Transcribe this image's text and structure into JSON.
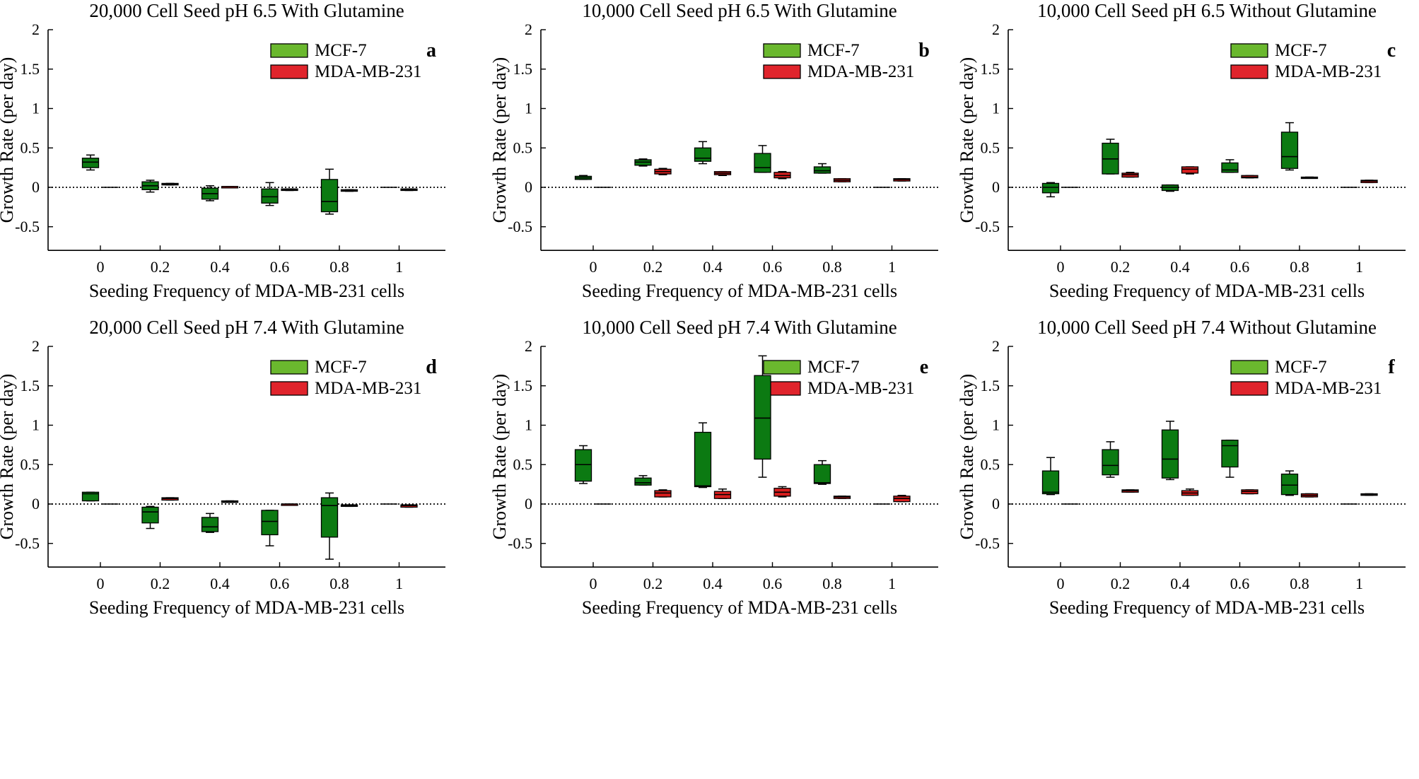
{
  "figure": {
    "colors": {
      "mcf7_fill": "#0c7a12",
      "mcf7_legend": "#6ab82e",
      "mda_fill": "#d81e1e",
      "mda_legend": "#e0242c",
      "axis": "#000000"
    },
    "legend": {
      "mcf7": "MCF-7",
      "mda": "MDA-MB-231"
    },
    "ylabel": "Growth Rate (per day)",
    "xlabel": "Seeding Frequency of MDA-MB-231 cells",
    "yticks": [
      "2",
      "1.5",
      "1",
      "0.5",
      "0",
      "-0.5"
    ],
    "xticks": [
      "0",
      "0.2",
      "0.4",
      "0.6",
      "0.8",
      "1"
    ]
  },
  "chart_data": [
    {
      "type": "box",
      "letter": "a",
      "title": "20,000 Cell Seed pH 6.5 With Glutamine",
      "xlabel": "Seeding Frequency of MDA-MB-231 cells",
      "ylabel": "Growth Rate (per day)",
      "ylim": [
        -0.8,
        2
      ],
      "categories": [
        "0",
        "0.2",
        "0.4",
        "0.6",
        "0.8",
        "1"
      ],
      "series": [
        {
          "name": "MCF-7",
          "boxes": [
            [
              0.22,
              0.25,
              0.32,
              0.37,
              0.41
            ],
            [
              -0.06,
              -0.03,
              0.02,
              0.07,
              0.09
            ],
            [
              -0.17,
              -0.15,
              -0.08,
              -0.01,
              0.02
            ],
            [
              -0.23,
              -0.2,
              -0.12,
              -0.02,
              0.06
            ],
            [
              -0.34,
              -0.31,
              -0.18,
              0.1,
              0.23
            ],
            [
              0,
              0,
              0,
              0,
              0
            ]
          ]
        },
        {
          "name": "MDA-MB-231",
          "boxes": [
            [
              0,
              0,
              0,
              0,
              0
            ],
            [
              0.03,
              0.03,
              0.04,
              0.05,
              0.05
            ],
            [
              0,
              0,
              0.01,
              0.01,
              0.01
            ],
            [
              -0.04,
              -0.04,
              -0.03,
              -0.02,
              -0.02
            ],
            [
              -0.05,
              -0.05,
              -0.04,
              -0.03,
              -0.03
            ],
            [
              -0.04,
              -0.04,
              -0.03,
              -0.02,
              -0.02
            ]
          ]
        }
      ]
    },
    {
      "type": "box",
      "letter": "b",
      "title": "10,000 Cell Seed pH 6.5 With Glutamine",
      "xlabel": "Seeding Frequency of MDA-MB-231 cells",
      "ylabel": "Growth Rate (per day)",
      "ylim": [
        -0.8,
        2
      ],
      "categories": [
        "0",
        "0.2",
        "0.4",
        "0.6",
        "0.8",
        "1"
      ],
      "series": [
        {
          "name": "MCF-7",
          "boxes": [
            [
              0.1,
              0.1,
              0.12,
              0.14,
              0.15
            ],
            [
              0.27,
              0.28,
              0.32,
              0.35,
              0.36
            ],
            [
              0.3,
              0.33,
              0.37,
              0.5,
              0.58
            ],
            [
              0.19,
              0.19,
              0.25,
              0.43,
              0.53
            ],
            [
              0.18,
              0.18,
              0.21,
              0.26,
              0.3
            ],
            [
              0,
              0,
              0,
              0,
              0
            ]
          ]
        },
        {
          "name": "MDA-MB-231",
          "boxes": [
            [
              0,
              0,
              0,
              0,
              0
            ],
            [
              0.16,
              0.17,
              0.2,
              0.23,
              0.24
            ],
            [
              0.15,
              0.16,
              0.18,
              0.2,
              0.2
            ],
            [
              0.11,
              0.12,
              0.15,
              0.19,
              0.2
            ],
            [
              0.07,
              0.07,
              0.09,
              0.11,
              0.11
            ],
            [
              0.08,
              0.08,
              0.1,
              0.11,
              0.11
            ]
          ]
        }
      ]
    },
    {
      "type": "box",
      "letter": "c",
      "title": "10,000 Cell Seed pH 6.5 Without Glutamine",
      "xlabel": "Seeding Frequency of MDA-MB-231 cells",
      "ylabel": "Growth Rate (per day)",
      "ylim": [
        -0.8,
        2
      ],
      "categories": [
        "0",
        "0.2",
        "0.4",
        "0.6",
        "0.8",
        "1"
      ],
      "series": [
        {
          "name": "MCF-7",
          "boxes": [
            [
              -0.12,
              -0.07,
              0,
              0.05,
              0.06
            ],
            [
              0.17,
              0.17,
              0.36,
              0.56,
              0.61
            ],
            [
              -0.05,
              -0.04,
              0,
              0.03,
              0.03
            ],
            [
              0.19,
              0.19,
              0.22,
              0.31,
              0.35
            ],
            [
              0.22,
              0.24,
              0.39,
              0.7,
              0.82
            ],
            [
              0,
              0,
              0,
              0,
              0
            ]
          ]
        },
        {
          "name": "MDA-MB-231",
          "boxes": [
            [
              0,
              0,
              0,
              0,
              0
            ],
            [
              0.13,
              0.13,
              0.16,
              0.18,
              0.19
            ],
            [
              0.17,
              0.18,
              0.23,
              0.26,
              0.26
            ],
            [
              0.12,
              0.12,
              0.13,
              0.15,
              0.15
            ],
            [
              0.12,
              0.12,
              0.12,
              0.13,
              0.13
            ],
            [
              0.06,
              0.06,
              0.08,
              0.09,
              0.09
            ]
          ]
        }
      ]
    },
    {
      "type": "box",
      "letter": "d",
      "title": "20,000 Cell Seed pH 7.4 With Glutamine",
      "xlabel": "Seeding Frequency of MDA-MB-231 cells",
      "ylabel": "Growth Rate (per day)",
      "ylim": [
        -0.8,
        2
      ],
      "categories": [
        "0",
        "0.2",
        "0.4",
        "0.6",
        "0.8",
        "1"
      ],
      "series": [
        {
          "name": "MCF-7",
          "boxes": [
            [
              0.04,
              0.04,
              0.13,
              0.15,
              0.15
            ],
            [
              -0.31,
              -0.24,
              -0.1,
              -0.04,
              -0.03
            ],
            [
              -0.36,
              -0.35,
              -0.29,
              -0.17,
              -0.12
            ],
            [
              -0.53,
              -0.39,
              -0.22,
              -0.08,
              -0.08
            ],
            [
              -0.7,
              -0.42,
              -0.02,
              0.08,
              0.14
            ],
            [
              0,
              0,
              0,
              0,
              0
            ]
          ]
        },
        {
          "name": "MDA-MB-231",
          "boxes": [
            [
              0,
              0,
              0,
              0,
              0
            ],
            [
              0.05,
              0.05,
              0.07,
              0.08,
              0.08
            ],
            [
              0.02,
              0.02,
              0.03,
              0.04,
              0.04
            ],
            [
              -0.01,
              -0.01,
              0,
              0,
              0
            ],
            [
              -0.03,
              -0.03,
              -0.02,
              -0.01,
              -0.01
            ],
            [
              -0.04,
              -0.04,
              -0.02,
              -0.01,
              -0.01
            ]
          ]
        }
      ]
    },
    {
      "type": "box",
      "letter": "e",
      "title": "10,000 Cell Seed pH 7.4 With Glutamine",
      "xlabel": "Seeding Frequency of MDA-MB-231 cells",
      "ylabel": "Growth Rate (per day)",
      "ylim": [
        -0.8,
        2
      ],
      "categories": [
        "0",
        "0.2",
        "0.4",
        "0.6",
        "0.8",
        "1"
      ],
      "series": [
        {
          "name": "MCF-7",
          "boxes": [
            [
              0.26,
              0.29,
              0.5,
              0.69,
              0.74
            ],
            [
              0.24,
              0.24,
              0.27,
              0.33,
              0.36
            ],
            [
              0.21,
              0.22,
              0.23,
              0.91,
              1.03
            ],
            [
              0.34,
              0.57,
              1.09,
              1.63,
              1.88
            ],
            [
              0.25,
              0.26,
              0.27,
              0.5,
              0.55
            ],
            [
              0,
              0,
              0,
              0,
              0
            ]
          ]
        },
        {
          "name": "MDA-MB-231",
          "boxes": [
            [
              0,
              0,
              0,
              0,
              0
            ],
            [
              0.09,
              0.09,
              0.14,
              0.17,
              0.18
            ],
            [
              0.07,
              0.07,
              0.12,
              0.16,
              0.19
            ],
            [
              0.09,
              0.1,
              0.15,
              0.2,
              0.22
            ],
            [
              0.07,
              0.07,
              0.09,
              0.1,
              0.1
            ],
            [
              0.03,
              0.03,
              0.07,
              0.1,
              0.11
            ]
          ]
        }
      ]
    },
    {
      "type": "box",
      "letter": "f",
      "title": "10,000 Cell Seed pH 7.4 Without Glutamine",
      "xlabel": "Seeding Frequency of MDA-MB-231 cells",
      "ylabel": "Growth Rate (per day)",
      "ylim": [
        -0.8,
        2
      ],
      "categories": [
        "0",
        "0.2",
        "0.4",
        "0.6",
        "0.8",
        "1"
      ],
      "series": [
        {
          "name": "MCF-7",
          "boxes": [
            [
              0.12,
              0.13,
              0.15,
              0.42,
              0.59
            ],
            [
              0.34,
              0.37,
              0.49,
              0.69,
              0.79
            ],
            [
              0.31,
              0.33,
              0.57,
              0.94,
              1.05
            ],
            [
              0.34,
              0.47,
              0.74,
              0.81,
              0.81
            ],
            [
              0.11,
              0.12,
              0.24,
              0.38,
              0.42
            ],
            [
              0,
              0,
              0,
              0,
              0
            ]
          ]
        },
        {
          "name": "MDA-MB-231",
          "boxes": [
            [
              0,
              0,
              0,
              0,
              0
            ],
            [
              0.15,
              0.15,
              0.17,
              0.18,
              0.18
            ],
            [
              0.11,
              0.11,
              0.14,
              0.17,
              0.19
            ],
            [
              0.13,
              0.13,
              0.16,
              0.18,
              0.18
            ],
            [
              0.09,
              0.09,
              0.11,
              0.13,
              0.13
            ],
            [
              0.11,
              0.11,
              0.12,
              0.13,
              0.13
            ]
          ]
        }
      ]
    }
  ]
}
